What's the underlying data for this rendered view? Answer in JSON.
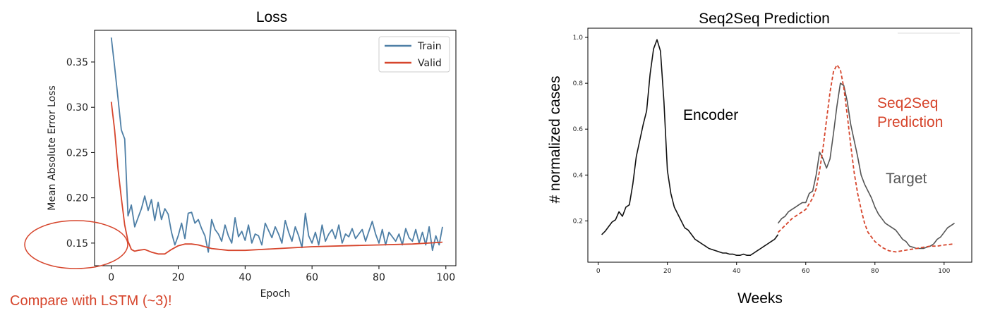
{
  "chart_data": [
    {
      "type": "line",
      "title": "Loss",
      "xlabel": "Epoch",
      "ylabel": "Mean Absolute Error Loss",
      "xlim": [
        -5,
        103
      ],
      "ylim": [
        0.125,
        0.385
      ],
      "xticks": [
        "0",
        "20",
        "40",
        "60",
        "80",
        "100"
      ],
      "yticks": [
        "0.15",
        "0.20",
        "0.25",
        "0.30",
        "0.35"
      ],
      "legend": {
        "position": "top-right",
        "entries": [
          "Train",
          "Valid"
        ]
      },
      "grid": false,
      "series": [
        {
          "name": "Train",
          "color": "#4e7fa6",
          "x": [
            0,
            1,
            2,
            3,
            4,
            5,
            6,
            7,
            8,
            9,
            10,
            11,
            12,
            13,
            14,
            15,
            16,
            17,
            18,
            19,
            20,
            21,
            22,
            23,
            24,
            25,
            26,
            27,
            28,
            29,
            30,
            31,
            32,
            33,
            34,
            35,
            36,
            37,
            38,
            39,
            40,
            41,
            42,
            43,
            44,
            45,
            46,
            47,
            48,
            49,
            50,
            51,
            52,
            53,
            54,
            55,
            56,
            57,
            58,
            59,
            60,
            61,
            62,
            63,
            64,
            65,
            66,
            67,
            68,
            69,
            70,
            71,
            72,
            73,
            74,
            75,
            76,
            77,
            78,
            79,
            80,
            81,
            82,
            83,
            84,
            85,
            86,
            87,
            88,
            89,
            90,
            91,
            92,
            93,
            94,
            95,
            96,
            97,
            98,
            99
          ],
          "y": [
            0.377,
            0.345,
            0.31,
            0.275,
            0.265,
            0.18,
            0.192,
            0.168,
            0.178,
            0.188,
            0.202,
            0.186,
            0.198,
            0.175,
            0.195,
            0.176,
            0.188,
            0.182,
            0.162,
            0.148,
            0.158,
            0.172,
            0.155,
            0.183,
            0.184,
            0.172,
            0.176,
            0.166,
            0.158,
            0.14,
            0.176,
            0.165,
            0.16,
            0.152,
            0.17,
            0.158,
            0.15,
            0.178,
            0.157,
            0.163,
            0.153,
            0.17,
            0.15,
            0.16,
            0.158,
            0.148,
            0.172,
            0.164,
            0.156,
            0.168,
            0.16,
            0.15,
            0.175,
            0.162,
            0.152,
            0.168,
            0.158,
            0.145,
            0.183,
            0.158,
            0.15,
            0.162,
            0.148,
            0.17,
            0.152,
            0.16,
            0.165,
            0.155,
            0.17,
            0.15,
            0.16,
            0.157,
            0.166,
            0.155,
            0.16,
            0.165,
            0.152,
            0.163,
            0.174,
            0.16,
            0.15,
            0.165,
            0.148,
            0.162,
            0.157,
            0.152,
            0.16,
            0.148,
            0.166,
            0.156,
            0.152,
            0.165,
            0.15,
            0.162,
            0.148,
            0.168,
            0.142,
            0.158,
            0.148,
            0.168
          ]
        },
        {
          "name": "Valid",
          "color": "#d6452c",
          "x": [
            0,
            1,
            2,
            3,
            4,
            5,
            6,
            7,
            8,
            10,
            12,
            14,
            16,
            18,
            20,
            22,
            24,
            26,
            28,
            30,
            35,
            40,
            45,
            50,
            60,
            70,
            80,
            90,
            99
          ],
          "y": [
            0.306,
            0.275,
            0.232,
            0.2,
            0.17,
            0.152,
            0.143,
            0.141,
            0.142,
            0.143,
            0.14,
            0.138,
            0.138,
            0.143,
            0.147,
            0.149,
            0.149,
            0.148,
            0.146,
            0.144,
            0.142,
            0.142,
            0.143,
            0.144,
            0.146,
            0.147,
            0.148,
            0.149,
            0.151
          ]
        }
      ]
    },
    {
      "type": "line",
      "title": "Seq2Seq Prediction",
      "xlabel": "Weeks",
      "ylabel": "# normalized cases",
      "xlim": [
        -3,
        108
      ],
      "ylim": [
        0.02,
        1.04
      ],
      "xticks": [
        "0",
        "20",
        "40",
        "60",
        "80",
        "100"
      ],
      "yticks": [
        "0.2",
        "0.4",
        "0.6",
        "0.8",
        "1.0"
      ],
      "grid": false,
      "series": [
        {
          "name": "Encoder",
          "color": "#111111",
          "x": [
            1,
            2,
            3,
            4,
            5,
            6,
            7,
            8,
            9,
            10,
            11,
            12,
            13,
            14,
            15,
            16,
            17,
            18,
            19,
            20,
            21,
            22,
            23,
            24,
            25,
            26,
            27,
            28,
            29,
            30,
            31,
            32,
            33,
            34,
            35,
            36,
            37,
            38,
            39,
            40,
            41,
            42,
            43,
            44,
            45,
            46,
            47,
            48,
            49,
            50,
            51,
            52
          ],
          "y": [
            0.14,
            0.155,
            0.175,
            0.195,
            0.205,
            0.24,
            0.22,
            0.26,
            0.27,
            0.36,
            0.48,
            0.55,
            0.62,
            0.68,
            0.84,
            0.95,
            0.99,
            0.94,
            0.72,
            0.42,
            0.32,
            0.26,
            0.23,
            0.2,
            0.17,
            0.16,
            0.14,
            0.12,
            0.11,
            0.1,
            0.09,
            0.08,
            0.075,
            0.07,
            0.065,
            0.06,
            0.06,
            0.055,
            0.055,
            0.05,
            0.05,
            0.055,
            0.05,
            0.05,
            0.06,
            0.07,
            0.08,
            0.09,
            0.1,
            0.11,
            0.12,
            0.14
          ]
        },
        {
          "name": "Target",
          "color": "#555555",
          "x": [
            52,
            53,
            54,
            55,
            56,
            57,
            58,
            59,
            60,
            61,
            62,
            63,
            64,
            65,
            66,
            67,
            68,
            69,
            70,
            71,
            72,
            73,
            74,
            75,
            76,
            77,
            78,
            79,
            80,
            81,
            82,
            83,
            84,
            85,
            86,
            87,
            88,
            89,
            90,
            91,
            92,
            93,
            94,
            95,
            96,
            97,
            98,
            99,
            100,
            101,
            102,
            103
          ],
          "y": [
            0.19,
            0.21,
            0.22,
            0.24,
            0.25,
            0.26,
            0.27,
            0.28,
            0.28,
            0.32,
            0.33,
            0.4,
            0.5,
            0.47,
            0.43,
            0.47,
            0.58,
            0.7,
            0.8,
            0.79,
            0.72,
            0.62,
            0.55,
            0.48,
            0.4,
            0.36,
            0.33,
            0.3,
            0.26,
            0.23,
            0.21,
            0.19,
            0.18,
            0.17,
            0.16,
            0.14,
            0.12,
            0.11,
            0.09,
            0.085,
            0.08,
            0.08,
            0.08,
            0.085,
            0.09,
            0.1,
            0.12,
            0.13,
            0.15,
            0.17,
            0.18,
            0.19
          ]
        },
        {
          "name": "Seq2Seq Prediction",
          "color": "#d6452c",
          "x": [
            52,
            54,
            56,
            58,
            60,
            62,
            63,
            64,
            65,
            66,
            67,
            68,
            69,
            70,
            71,
            72,
            73,
            74,
            75,
            76,
            77,
            78,
            80,
            82,
            84,
            86,
            88,
            90,
            92,
            94,
            96,
            98,
            100,
            103
          ],
          "y": [
            0.15,
            0.18,
            0.21,
            0.23,
            0.25,
            0.3,
            0.34,
            0.42,
            0.52,
            0.64,
            0.76,
            0.85,
            0.88,
            0.86,
            0.78,
            0.66,
            0.53,
            0.41,
            0.32,
            0.25,
            0.19,
            0.15,
            0.11,
            0.085,
            0.07,
            0.065,
            0.07,
            0.075,
            0.08,
            0.085,
            0.09,
            0.09,
            0.095,
            0.1
          ]
        }
      ],
      "annotations": {
        "encoder": "Encoder",
        "prediction": "Seq2Seq\nPrediction",
        "target": "Target"
      }
    }
  ],
  "note": "Compare with LSTM (~3)!"
}
